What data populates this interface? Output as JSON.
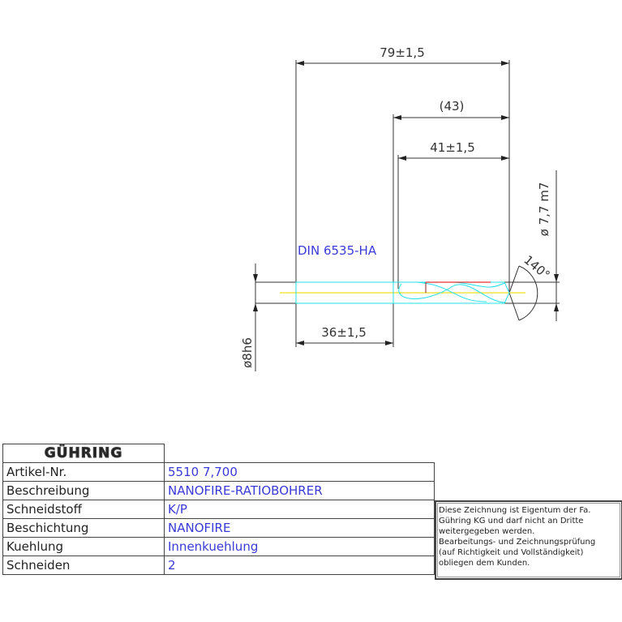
{
  "drawing": {
    "standard_label": "DIN 6535-HA",
    "dimensions": {
      "overall_length": "79±1,5",
      "flute_length_ref": "(43)",
      "flute_length": "41±1,5",
      "shank_length": "36±1,5",
      "shank_diameter": "ø8h6",
      "cutting_diameter": "ø 7,7 m7",
      "point_angle": "140°"
    },
    "colors": {
      "line": "#333333",
      "tool": "#22e0e8",
      "center": "#f0e020",
      "accent": "#e83030",
      "text_blue": "#3a3ad8"
    }
  },
  "title_block": {
    "logo": "GÜHRING",
    "rows": [
      {
        "label": "Artikel-Nr.",
        "value": "5510 7,700"
      },
      {
        "label": "Beschreibung",
        "value": "NANOFIRE-RATIOBOHRER"
      },
      {
        "label": "Schneidstoff",
        "value": "K/P"
      },
      {
        "label": "Beschichtung",
        "value": "NANOFIRE"
      },
      {
        "label": "Kuehlung",
        "value": "Innenkuehlung"
      },
      {
        "label": "Schneiden",
        "value": "2"
      }
    ],
    "note": "Diese Zeichnung ist Eigentum der Fa.\nGühring KG und darf nicht an Dritte\nweitergegeben werden.\nBearbeitungs- und Zeichnungsprüfung\n(auf Richtigkeit und Vollständigkeit)\nobliegen dem Kunden."
  }
}
